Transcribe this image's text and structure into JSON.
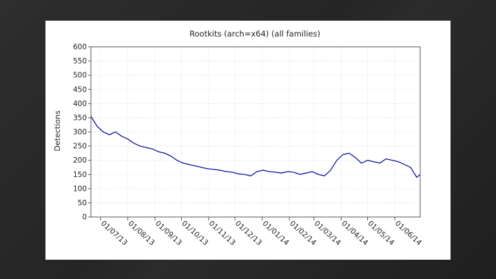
{
  "slide": {
    "background_color": "#2a2a2a"
  },
  "chart_data": {
    "type": "line",
    "title": "Rootkits (arch=x64) (all families)",
    "xlabel": "",
    "ylabel": "Detections",
    "ylim": [
      0,
      600
    ],
    "yticks": [
      0,
      50,
      100,
      150,
      200,
      250,
      300,
      350,
      400,
      450,
      500,
      550,
      600
    ],
    "xlim": [
      "2013-06-20",
      "2014-06-30"
    ],
    "xticks": [
      {
        "date": "2013-07-01",
        "label": "01/07/13"
      },
      {
        "date": "2013-08-01",
        "label": "01/08/13"
      },
      {
        "date": "2013-09-01",
        "label": "01/09/13"
      },
      {
        "date": "2013-10-01",
        "label": "01/10/13"
      },
      {
        "date": "2013-11-01",
        "label": "01/11/13"
      },
      {
        "date": "2013-12-01",
        "label": "01/12/13"
      },
      {
        "date": "2014-01-01",
        "label": "01/01/14"
      },
      {
        "date": "2014-02-01",
        "label": "01/02/14"
      },
      {
        "date": "2014-03-01",
        "label": "01/03/14"
      },
      {
        "date": "2014-04-01",
        "label": "01/04/14"
      },
      {
        "date": "2014-05-01",
        "label": "01/05/14"
      },
      {
        "date": "2014-06-01",
        "label": "01/06/14"
      }
    ],
    "grid": true,
    "line_color": "#1010a0",
    "series": [
      {
        "x": [
          "2013-06-20",
          "2013-06-27",
          "2013-07-04",
          "2013-07-11",
          "2013-07-18",
          "2013-07-25",
          "2013-08-01",
          "2013-08-08",
          "2013-08-15",
          "2013-08-22",
          "2013-08-29",
          "2013-09-05",
          "2013-09-12",
          "2013-09-19",
          "2013-09-26",
          "2013-10-03",
          "2013-10-10",
          "2013-10-17",
          "2013-10-24",
          "2013-10-31",
          "2013-11-07",
          "2013-11-14",
          "2013-11-21",
          "2013-11-28",
          "2013-12-05",
          "2013-12-12",
          "2013-12-19",
          "2013-12-26",
          "2014-01-02",
          "2014-01-09",
          "2014-01-16",
          "2014-01-23",
          "2014-01-30",
          "2014-02-06",
          "2014-02-13",
          "2014-02-20",
          "2014-02-27",
          "2014-03-06",
          "2014-03-13",
          "2014-03-20",
          "2014-03-27",
          "2014-04-03",
          "2014-04-10",
          "2014-04-17",
          "2014-04-24",
          "2014-05-01",
          "2014-05-08",
          "2014-05-15",
          "2014-05-22",
          "2014-05-29",
          "2014-06-05",
          "2014-06-12",
          "2014-06-19",
          "2014-06-26",
          "2014-06-30"
        ],
        "values": [
          355,
          320,
          300,
          290,
          300,
          285,
          275,
          260,
          250,
          245,
          240,
          230,
          225,
          215,
          200,
          190,
          185,
          180,
          175,
          170,
          168,
          165,
          160,
          158,
          152,
          150,
          145,
          160,
          165,
          160,
          158,
          155,
          160,
          158,
          150,
          155,
          160,
          150,
          145,
          165,
          200,
          220,
          225,
          210,
          190,
          200,
          195,
          190,
          205,
          200,
          195,
          185,
          175,
          140,
          150
        ]
      }
    ]
  }
}
